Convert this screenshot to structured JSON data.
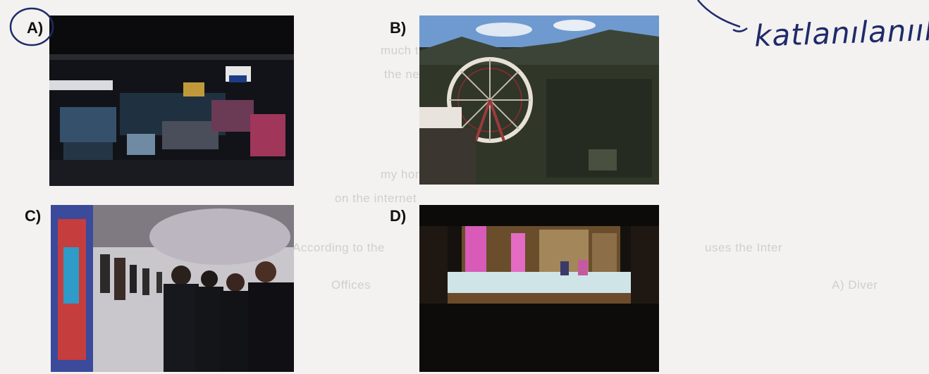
{
  "options": [
    {
      "label": "A)"
    },
    {
      "label": "B)"
    },
    {
      "label": "C)"
    },
    {
      "label": "D)"
    }
  ],
  "annotation": {
    "handwritten_note": "katlanılanıılı"
  },
  "background_text": [
    "much time on",
    "the news",
    "my homework",
    "on the internet",
    "According to the",
    "uses the Inter",
    "Offices",
    "A) Diver"
  ]
}
